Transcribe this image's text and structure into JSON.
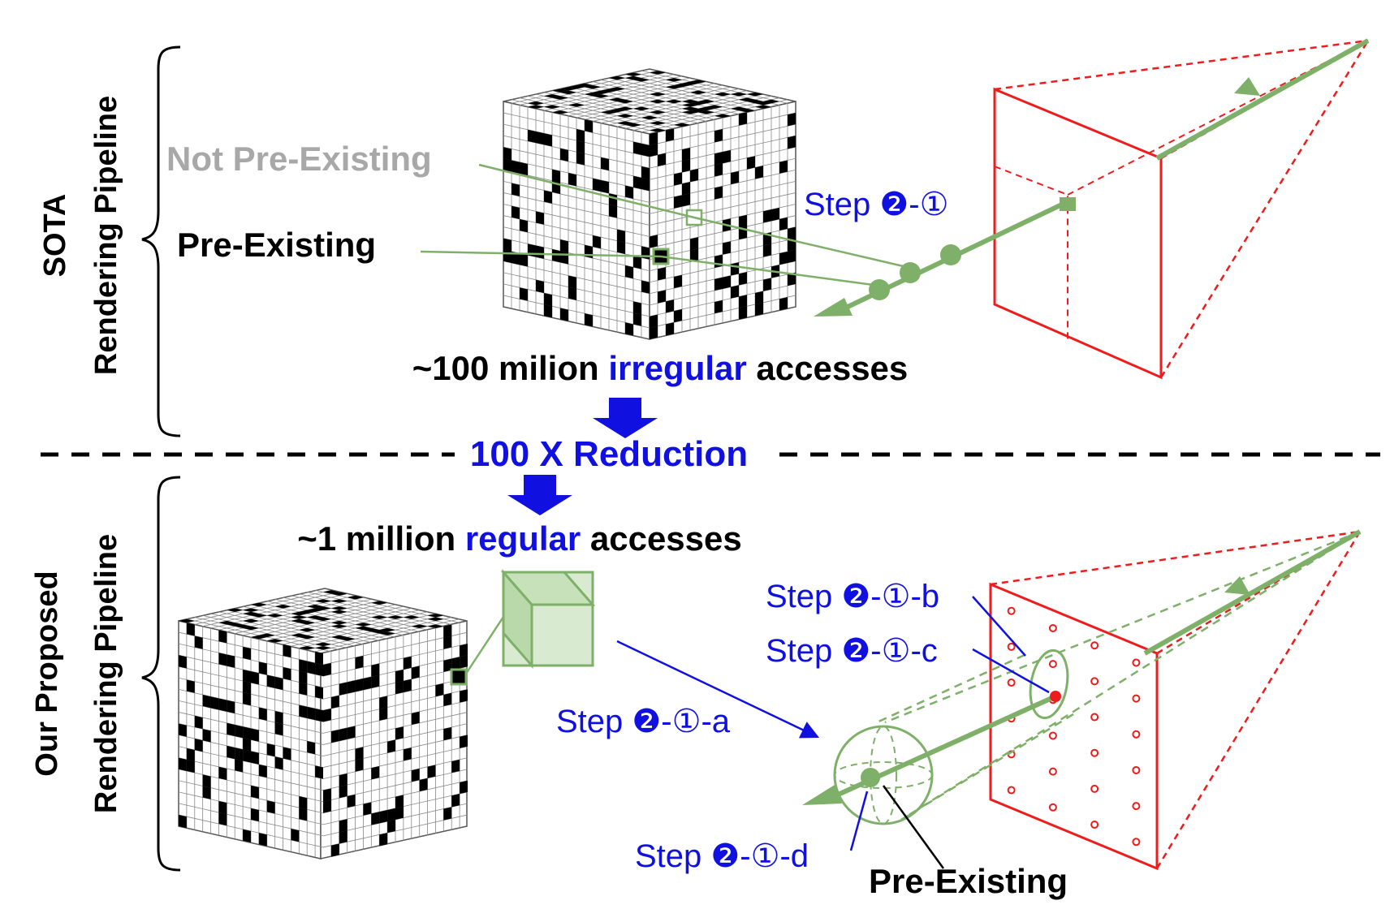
{
  "sections": {
    "top": {
      "line1": "SOTA",
      "line2": "Rendering Pipeline"
    },
    "bottom": {
      "line1": "Our Proposed",
      "line2": "Rendering Pipeline"
    }
  },
  "top_labels": {
    "not_pre_existing": "Not Pre-Existing",
    "pre_existing": "Pre-Existing",
    "step": "Step ❷-①",
    "access_prefix": "~100 milion ",
    "access_highlight": "irregular",
    "access_suffix": " accesses"
  },
  "reduction": "100 X Reduction",
  "bottom_labels": {
    "access_prefix": "~1 million ",
    "access_highlight": "regular",
    "access_suffix": " accesses",
    "step_a": "Step ❷-①-a",
    "step_b": "Step ❷-①-b",
    "step_c": "Step ❷-①-c",
    "step_d": "Step ❷-①-d",
    "pre_existing": "Pre-Existing"
  },
  "colors": {
    "green": "#7fb069",
    "red": "#ee1c1c",
    "blue": "#1010e0",
    "gray": "#a8a8a8"
  }
}
